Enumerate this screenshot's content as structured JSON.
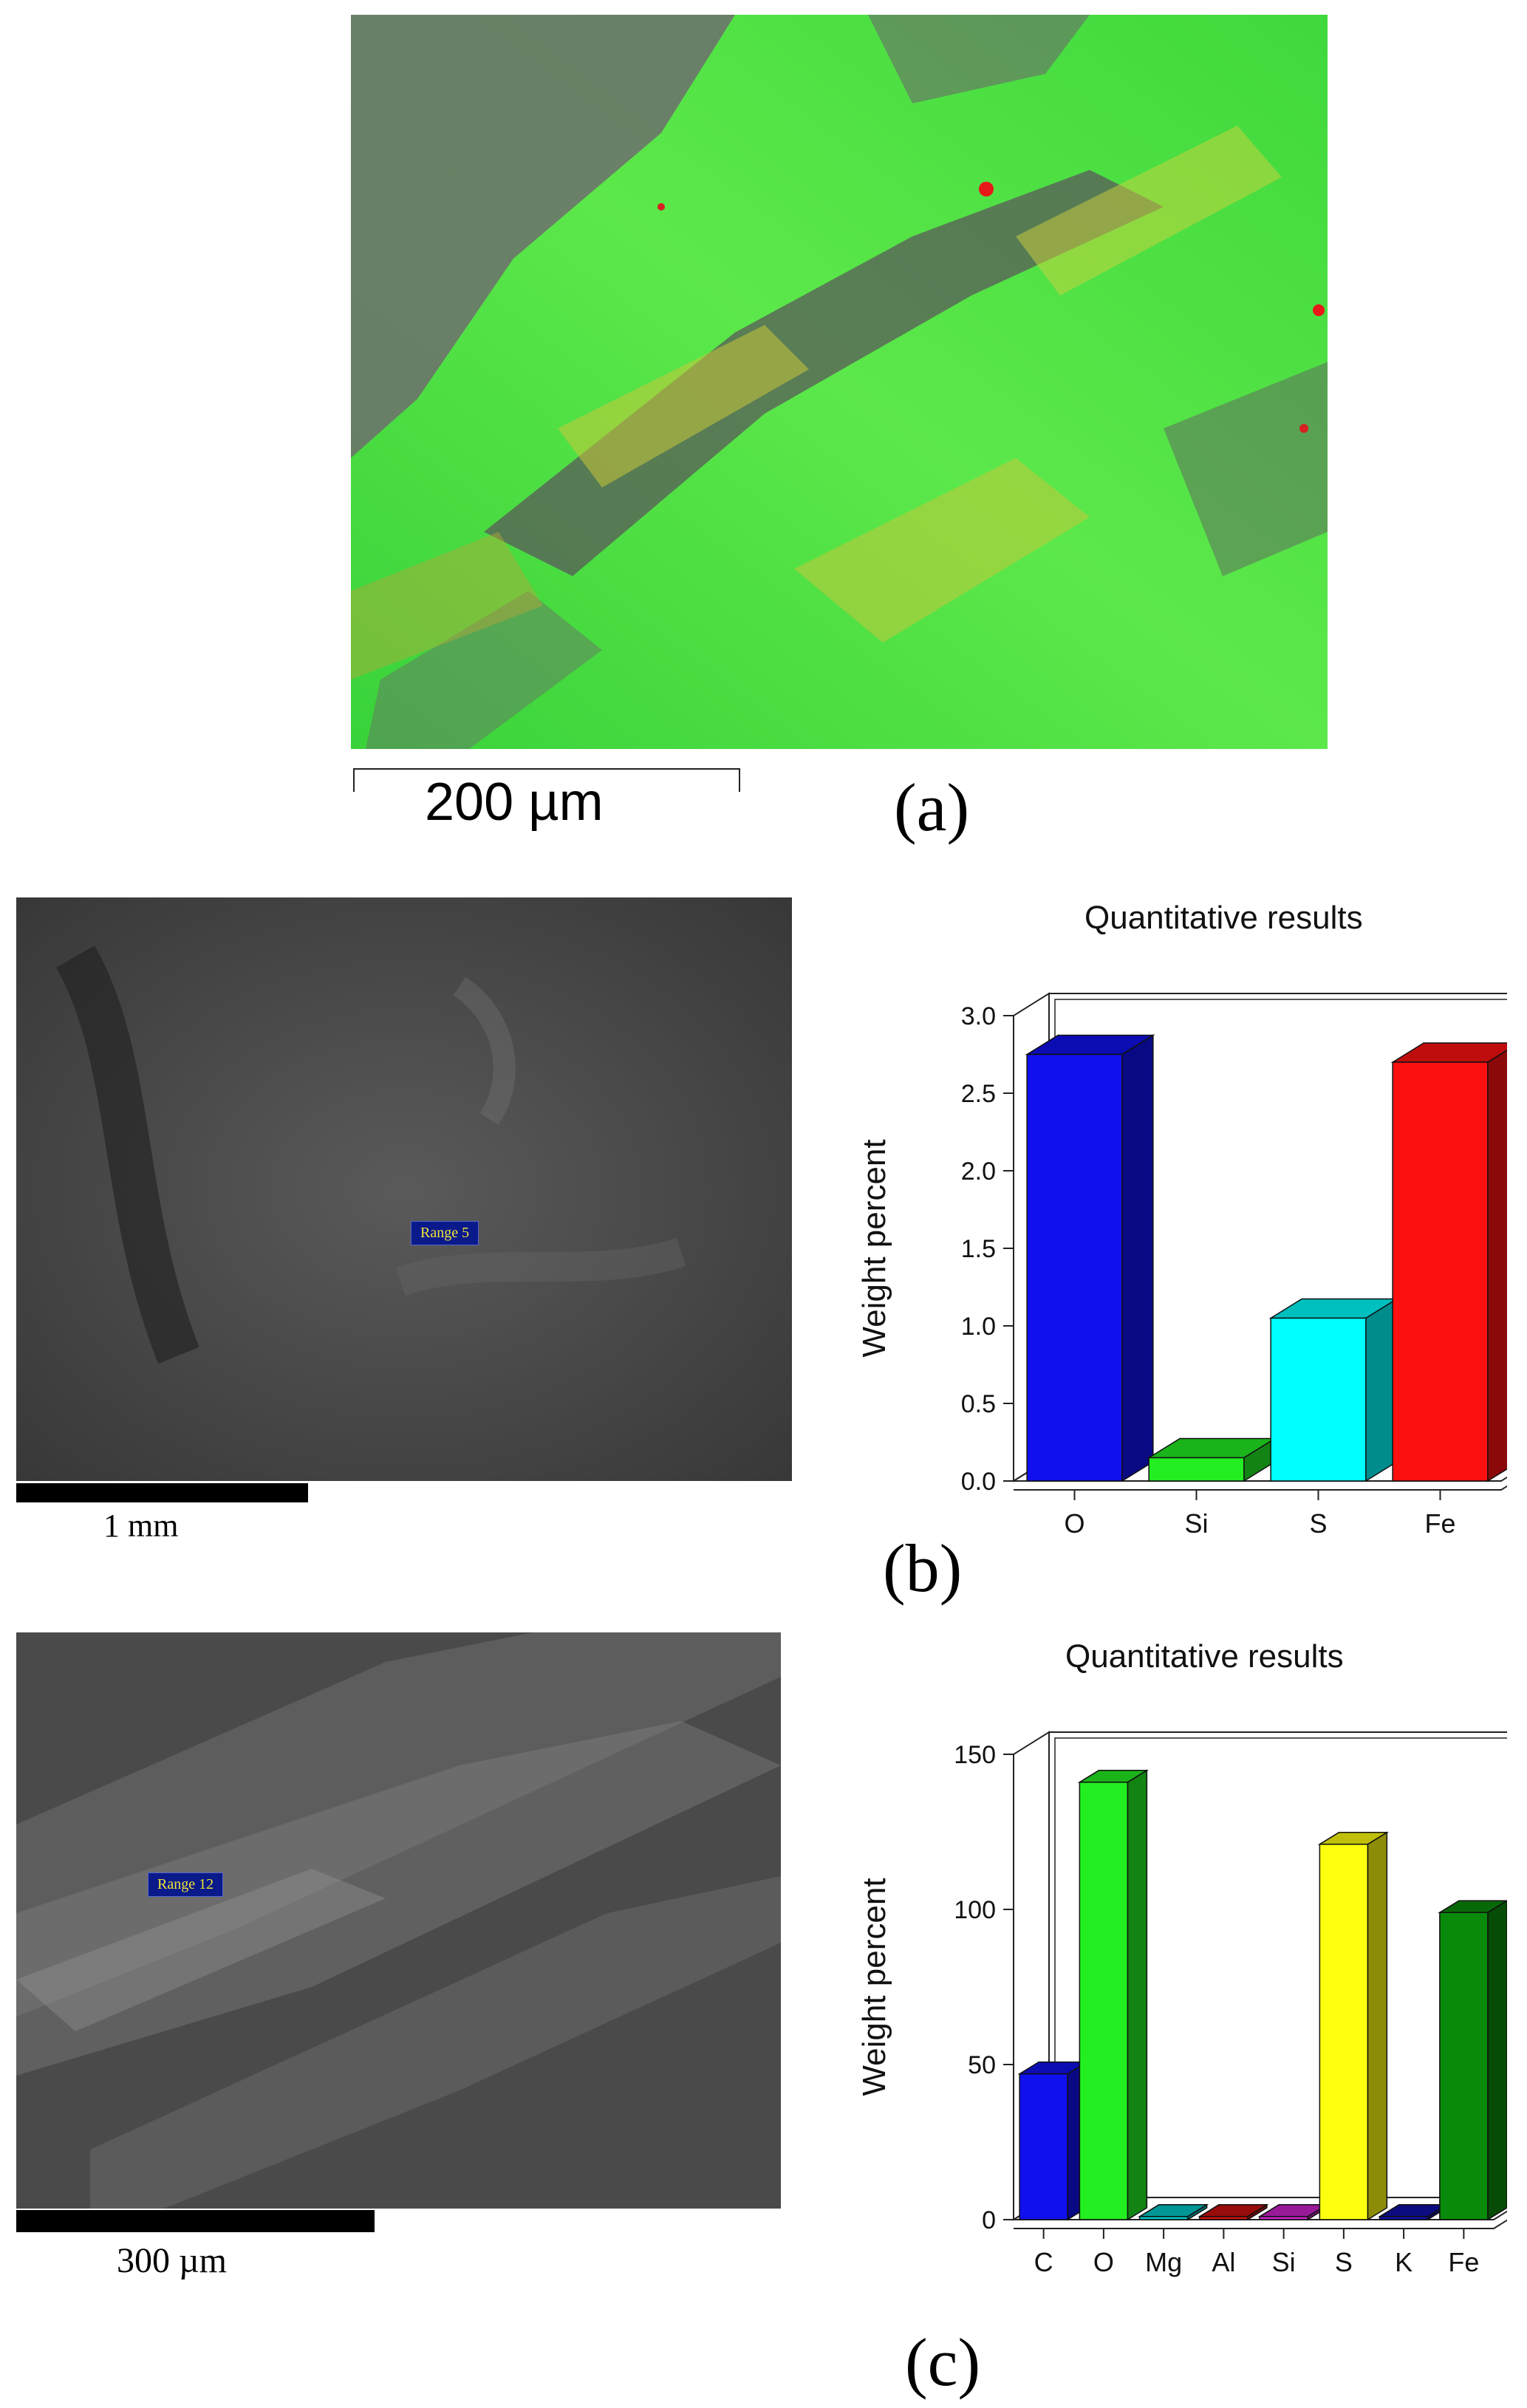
{
  "panels": {
    "a": {
      "label": "(a)",
      "scale_bar": "200 µm"
    },
    "b": {
      "label": "(b)",
      "scale_bar": "1 mm",
      "range_tag": "Range 5"
    },
    "c": {
      "label": "(c)",
      "scale_bar": "300 µm",
      "range_tag": "Range 12"
    }
  },
  "chart_data": [
    {
      "type": "bar",
      "title": "Quantitative results",
      "ylabel": "Weight percent",
      "xlabel": "",
      "categories": [
        "O",
        "Si",
        "S",
        "Fe"
      ],
      "values": [
        2.75,
        0.15,
        1.05,
        2.7
      ],
      "colors": [
        "#1010ee",
        "#22ee22",
        "#00ffff",
        "#ff1010"
      ],
      "ylim": [
        0,
        3.0
      ],
      "yticks": [
        "0.0",
        "0.5",
        "1.0",
        "1.5",
        "2.0",
        "2.5",
        "3.0"
      ],
      "grid": false,
      "style": "3d"
    },
    {
      "type": "bar",
      "title": "Quantitative results",
      "ylabel": "Weight percent",
      "xlabel": "",
      "categories": [
        "C",
        "O",
        "Mg",
        "Al",
        "Si",
        "S",
        "K",
        "Fe"
      ],
      "values": [
        47,
        141,
        1,
        1,
        1,
        121,
        1,
        99
      ],
      "colors": [
        "#1010ee",
        "#22ee22",
        "#00c8c8",
        "#cc1010",
        "#cc22cc",
        "#ffff10",
        "#1010aa",
        "#0a8a0a"
      ],
      "ylim": [
        0,
        150
      ],
      "yticks": [
        "0",
        "50",
        "100",
        "150"
      ],
      "grid": false,
      "style": "3d"
    }
  ]
}
